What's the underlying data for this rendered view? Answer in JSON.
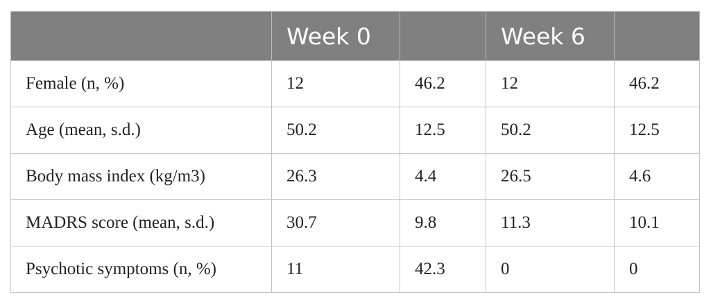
{
  "table": {
    "header": [
      "",
      "Week 0",
      "",
      "Week 6",
      ""
    ],
    "rows": [
      [
        "Female (n, %)",
        "12",
        "46.2",
        "12",
        "46.2"
      ],
      [
        "Age (mean, s.d.)",
        "50.2",
        "12.5",
        "50.2",
        "12.5"
      ],
      [
        "Body mass index (kg/m3)",
        "26.3",
        "4.4",
        "26.5",
        "4.6"
      ],
      [
        "MADRS score (mean, s.d.)",
        "30.7",
        "9.8",
        "11.3",
        "10.1"
      ],
      [
        "Psychotic symptoms (n, %)",
        "11",
        "42.3",
        "0",
        "0"
      ]
    ]
  },
  "colors": {
    "header_background": "#808080",
    "header_text": "#ffffff",
    "grid_line": "#c4c4c4",
    "body_text": "#222222"
  }
}
